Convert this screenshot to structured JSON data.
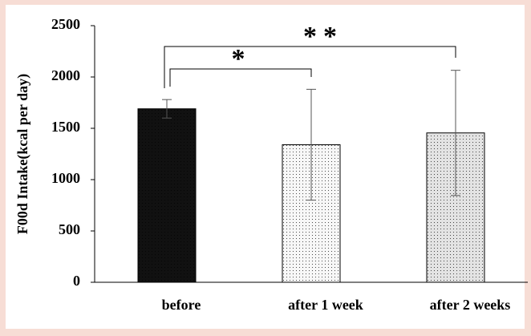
{
  "chart_data": {
    "type": "bar",
    "y_label": "F00d Intake(kcal per day)",
    "categories": [
      "before",
      "after 1 week",
      "after 2 weeks"
    ],
    "values": [
      1690,
      1340,
      1455
    ],
    "errors": [
      90,
      540,
      610
    ],
    "colors": [
      "#111111",
      "#f7f7f7",
      "#e3e3e3"
    ],
    "ylim": [
      0,
      2500
    ],
    "yticks": [
      0,
      500,
      1000,
      1500,
      2000,
      2500
    ],
    "annotations": [
      "*",
      "**"
    ]
  }
}
